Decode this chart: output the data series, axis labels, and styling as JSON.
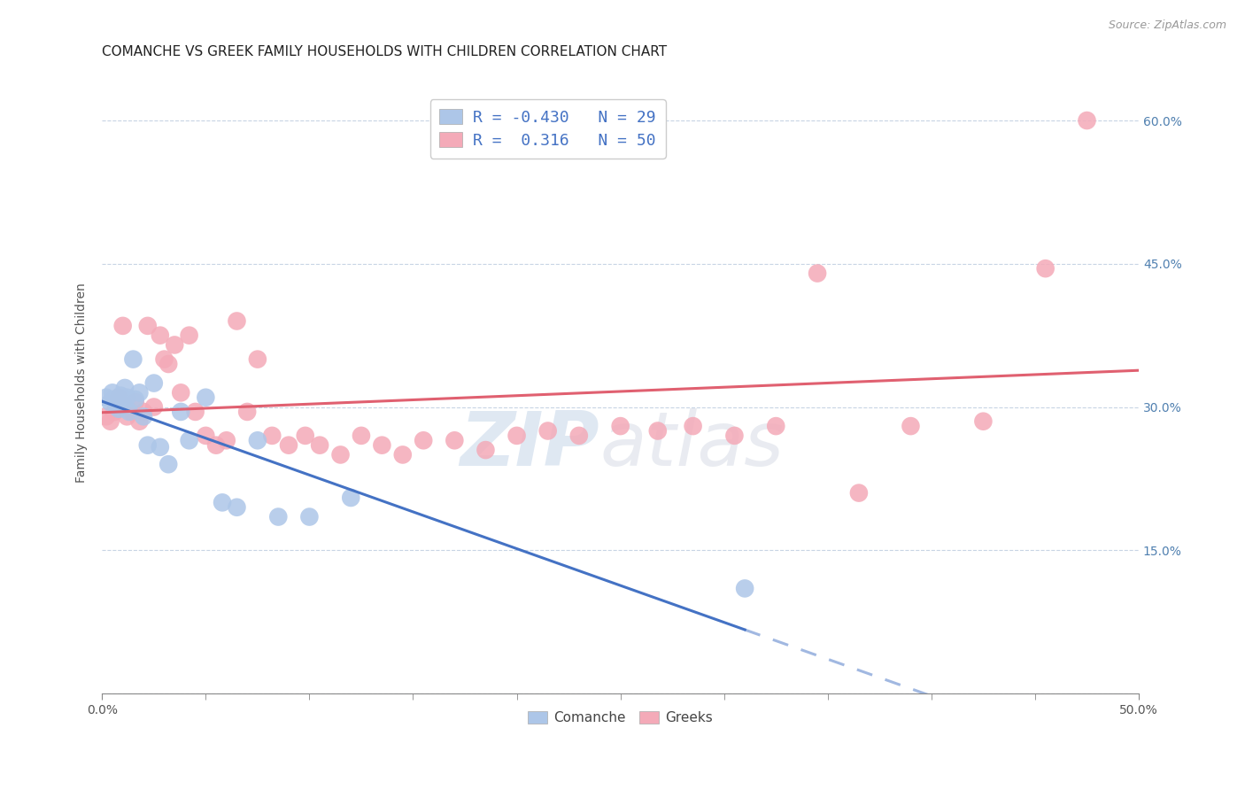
{
  "title": "COMANCHE VS GREEK FAMILY HOUSEHOLDS WITH CHILDREN CORRELATION CHART",
  "source": "Source: ZipAtlas.com",
  "ylabel": "Family Households with Children",
  "xlim": [
    0.0,
    0.5
  ],
  "ylim": [
    0.0,
    0.65
  ],
  "comanche_R": -0.43,
  "comanche_N": 29,
  "greek_R": 0.316,
  "greek_N": 50,
  "comanche_color": "#adc6e8",
  "greek_color": "#f4aab8",
  "comanche_line_color": "#4472c4",
  "greek_line_color": "#e06070",
  "comanche_x": [
    0.002,
    0.004,
    0.005,
    0.006,
    0.007,
    0.008,
    0.009,
    0.01,
    0.011,
    0.012,
    0.013,
    0.015,
    0.016,
    0.018,
    0.02,
    0.022,
    0.025,
    0.028,
    0.032,
    0.038,
    0.042,
    0.05,
    0.058,
    0.065,
    0.075,
    0.085,
    0.1,
    0.12,
    0.31
  ],
  "comanche_y": [
    0.31,
    0.305,
    0.315,
    0.308,
    0.302,
    0.298,
    0.312,
    0.305,
    0.32,
    0.31,
    0.295,
    0.35,
    0.308,
    0.315,
    0.29,
    0.26,
    0.325,
    0.258,
    0.24,
    0.295,
    0.265,
    0.31,
    0.2,
    0.195,
    0.265,
    0.185,
    0.185,
    0.205,
    0.11
  ],
  "greek_x": [
    0.002,
    0.004,
    0.006,
    0.008,
    0.01,
    0.012,
    0.014,
    0.016,
    0.018,
    0.02,
    0.022,
    0.025,
    0.028,
    0.03,
    0.032,
    0.035,
    0.038,
    0.042,
    0.045,
    0.05,
    0.055,
    0.06,
    0.065,
    0.07,
    0.075,
    0.082,
    0.09,
    0.098,
    0.105,
    0.115,
    0.125,
    0.135,
    0.145,
    0.155,
    0.17,
    0.185,
    0.2,
    0.215,
    0.23,
    0.25,
    0.268,
    0.285,
    0.305,
    0.325,
    0.345,
    0.365,
    0.39,
    0.425,
    0.455,
    0.475
  ],
  "greek_y": [
    0.29,
    0.285,
    0.295,
    0.31,
    0.385,
    0.29,
    0.295,
    0.305,
    0.285,
    0.295,
    0.385,
    0.3,
    0.375,
    0.35,
    0.345,
    0.365,
    0.315,
    0.375,
    0.295,
    0.27,
    0.26,
    0.265,
    0.39,
    0.295,
    0.35,
    0.27,
    0.26,
    0.27,
    0.26,
    0.25,
    0.27,
    0.26,
    0.25,
    0.265,
    0.265,
    0.255,
    0.27,
    0.275,
    0.27,
    0.28,
    0.275,
    0.28,
    0.27,
    0.28,
    0.44,
    0.21,
    0.28,
    0.285,
    0.445,
    0.6
  ],
  "watermark_zip": "ZIP",
  "watermark_atlas": "atlas",
  "background_color": "#ffffff",
  "grid_color": "#c8d4e4",
  "tick_color_right": "#5080b0",
  "title_fontsize": 11,
  "label_fontsize": 10,
  "tick_fontsize": 10,
  "source_fontsize": 9,
  "legend_fontsize": 13
}
